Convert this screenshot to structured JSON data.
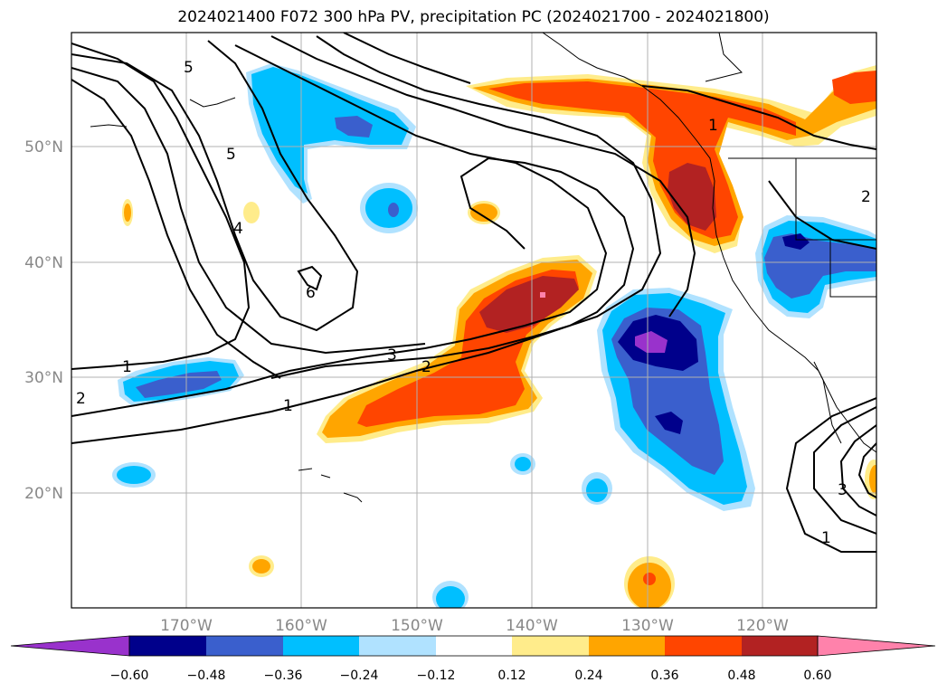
{
  "title": "2024021400 F072 300 hPa PV, precipitation PC (2024021700 - 2024021800)",
  "lat_labels": [
    "50°N",
    "40°N",
    "30°N",
    "20°N"
  ],
  "lon_labels": [
    "170°W",
    "160°W",
    "150°W",
    "140°W",
    "130°W",
    "120°W"
  ],
  "colorbar": {
    "ticks": [
      "−0.60",
      "−0.48",
      "−0.36",
      "−0.24",
      "−0.12",
      "0.12",
      "0.24",
      "0.36",
      "0.48",
      "0.60"
    ],
    "colors": [
      "#9932CC",
      "#00008B",
      "#3A5FCD",
      "#00BFFF",
      "#B0E2FF",
      "#FFFFFF",
      "#FFEC8B",
      "#FFA500",
      "#FF4500",
      "#B22222",
      "#FF82AB"
    ]
  },
  "contour_labels": [
    "5",
    "5",
    "4",
    "6",
    "3",
    "2",
    "1",
    "1",
    "2",
    "1",
    "2",
    "3",
    "1"
  ]
}
